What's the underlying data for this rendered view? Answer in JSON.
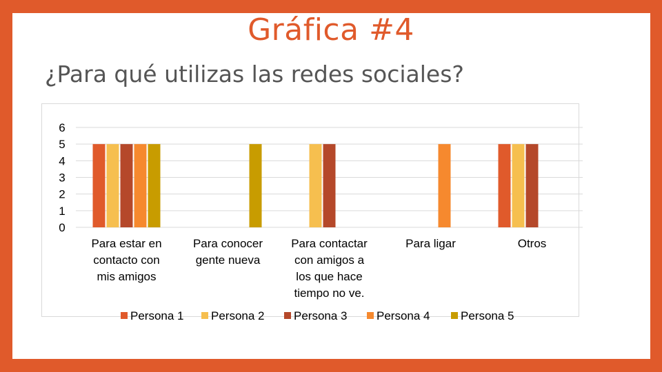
{
  "slide": {
    "title": "Gráfica #4",
    "subtitle": "¿Para qué utilizas las redes sociales?"
  },
  "colors": {
    "background": "#e05a2b",
    "title": "#e05a2b",
    "subtitle": "#555555"
  },
  "chart_data": {
    "type": "bar",
    "categories": [
      [
        "Para estar en",
        "contacto con",
        "mis amigos"
      ],
      [
        "Para conocer",
        "gente nueva"
      ],
      [
        "Para contactar",
        "con amigos a",
        "los que hace",
        "tiempo no ve."
      ],
      [
        "Para ligar"
      ],
      [
        "Otros"
      ]
    ],
    "series": [
      {
        "name": "Persona 1",
        "color": "#e05a2b",
        "values": [
          5,
          0,
          0,
          0,
          5
        ]
      },
      {
        "name": "Persona 2",
        "color": "#f6bf4f",
        "values": [
          5,
          0,
          5,
          0,
          5
        ]
      },
      {
        "name": "Persona 3",
        "color": "#b5482a",
        "values": [
          5,
          0,
          5,
          0,
          5
        ]
      },
      {
        "name": "Persona 4",
        "color": "#f6892e",
        "values": [
          5,
          0,
          0,
          5,
          0
        ]
      },
      {
        "name": "Persona 5",
        "color": "#c89c00",
        "values": [
          5,
          5,
          0,
          0,
          0
        ]
      }
    ],
    "yticks": [
      0,
      1,
      2,
      3,
      4,
      5,
      6
    ],
    "ylim": [
      0,
      6
    ],
    "grid": true,
    "legend": "bottom"
  }
}
